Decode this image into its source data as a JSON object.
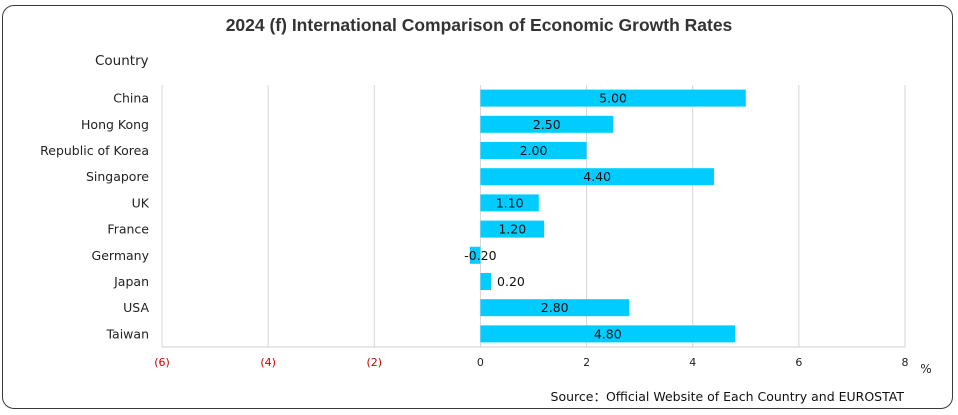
{
  "chart_data": {
    "type": "bar",
    "orientation": "horizontal",
    "title": "2024 (f) International Comparison of Economic Growth Rates",
    "ylabel": "Country",
    "xlabel": "%",
    "categories": [
      "China",
      "Hong Kong",
      "Republic of Korea",
      "Singapore",
      "UK",
      "France",
      "Germany",
      "Japan",
      "USA",
      "Taiwan"
    ],
    "values": [
      5.0,
      2.5,
      2.0,
      4.4,
      1.1,
      1.2,
      -0.2,
      0.2,
      2.8,
      4.8
    ],
    "value_labels": [
      "5.00",
      "2.50",
      "2.00",
      "4.40",
      "1.10",
      "1.20",
      "-0.20",
      "0.20",
      "2.80",
      "4.80"
    ],
    "xlim": [
      -6,
      8
    ],
    "ticks": [
      -6,
      -4,
      -2,
      0,
      2,
      4,
      6,
      8
    ],
    "tick_labels": [
      "(6)",
      "(4)",
      "(2)",
      "0",
      "2",
      "4",
      "6",
      "8"
    ],
    "grid": true,
    "bar_color": "#00CCFF",
    "negative_tick_color": "#CC0000"
  },
  "source": "Source：Official Website of Each Country and EUROSTAT"
}
